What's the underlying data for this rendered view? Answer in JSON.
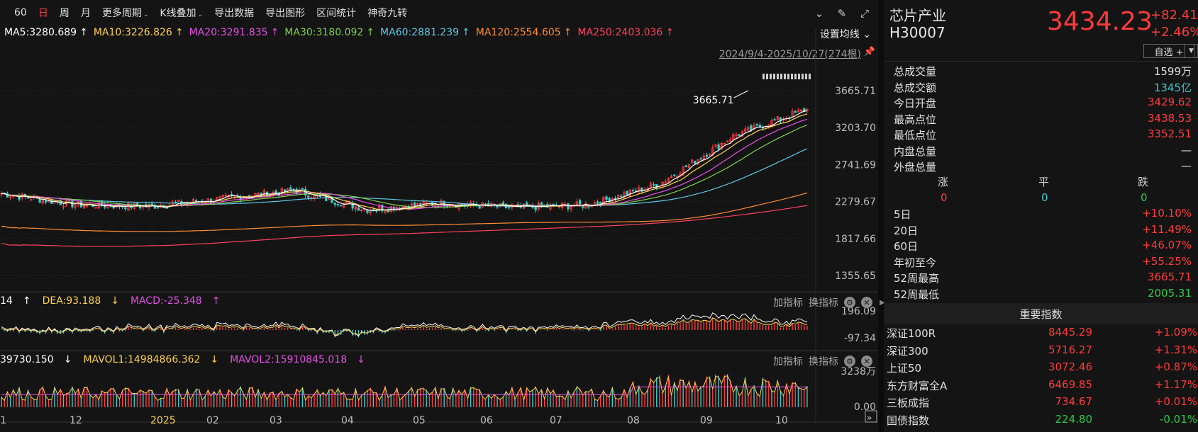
{
  "toolbar": {
    "items": [
      "60",
      "日",
      "周",
      "月",
      "更多周期",
      "K线叠加",
      "导出数据",
      "导出图形",
      "区间统计",
      "神奇九转"
    ],
    "active": "日"
  },
  "ma": {
    "items": [
      {
        "text": "MA5:3280.689",
        "arrow": "↑",
        "color": "#ffffff"
      },
      {
        "text": "MA10:3226.826",
        "arrow": "↑",
        "color": "#ffd24a"
      },
      {
        "text": "MA20:3291.835",
        "arrow": "↑",
        "color": "#e650e6"
      },
      {
        "text": "MA30:3180.092",
        "arrow": "↑",
        "color": "#7fd24a"
      },
      {
        "text": "MA60:2881.239",
        "arrow": "↑",
        "color": "#5ac8e6"
      },
      {
        "text": "MA120:2554.605",
        "arrow": "↑",
        "color": "#ff8c32"
      },
      {
        "text": "MA250:2403.036",
        "arrow": "↑",
        "color": "#ff4060"
      }
    ],
    "settings_label": "设置均线",
    "range_label": "2024/9/4-2025/10/27(274根)"
  },
  "price_axis": [
    "3665.71",
    "3203.70",
    "2741.69",
    "2279.67",
    "1817.66",
    "1355.65"
  ],
  "high_label": "3665.71",
  "macd": {
    "legend": [
      {
        "text": "14",
        "arrow": "↑",
        "color": "#ffffff"
      },
      {
        "text": "DEA:93.188",
        "arrow": "↓",
        "color": "#ffd24a"
      },
      {
        "text": "MACD:-25.348",
        "arrow": "↑",
        "color": "#e650e6"
      }
    ],
    "axis": [
      "196.09",
      "-97.34"
    ]
  },
  "volume": {
    "legend": [
      {
        "text": "39730.150",
        "arrow": "↓",
        "color": "#ffffff"
      },
      {
        "text": "MAVOL1:14984866.362",
        "arrow": "↓",
        "color": "#ffd24a"
      },
      {
        "text": "MAVOL2:15910845.018",
        "arrow": "↓",
        "color": "#e650e6"
      }
    ],
    "axis": [
      "3238万",
      "0.00"
    ]
  },
  "indicator_tools": {
    "add": "加指标",
    "swap": "换指标"
  },
  "x_axis": [
    "1",
    "12",
    "2025",
    "02",
    "03",
    "04",
    "05",
    "06",
    "07",
    "08",
    "09",
    "10"
  ],
  "stock": {
    "name": "芯片产业",
    "code": "H30007",
    "price": "3434.23",
    "change": "+82.41",
    "change_pct": "+2.46%",
    "watch_label": "自选 +"
  },
  "stats": [
    {
      "label": "总成交量",
      "value": "1599万",
      "color": "#e0e0e0"
    },
    {
      "label": "总成交额",
      "value": "1345亿",
      "color": "#3ec9c9"
    },
    {
      "label": "今日开盘",
      "value": "3429.62",
      "color": "#ff3b3b"
    },
    {
      "label": "最高点位",
      "value": "3438.53",
      "color": "#ff3b3b"
    },
    {
      "label": "最低点位",
      "value": "3352.51",
      "color": "#ff3b3b"
    },
    {
      "label": "内盘总量",
      "value": "—",
      "color": "#e0e0e0"
    },
    {
      "label": "外盘总量",
      "value": "—",
      "color": "#e0e0e0"
    }
  ],
  "tri": {
    "up_label": "涨",
    "flat_label": "平",
    "down_label": "跌",
    "up": "0",
    "flat": "0",
    "down": "0"
  },
  "perf": [
    {
      "label": "5日",
      "value": "+10.10%",
      "color": "#ff3b3b"
    },
    {
      "label": "20日",
      "value": "+11.49%",
      "color": "#ff3b3b"
    },
    {
      "label": "60日",
      "value": "+46.07%",
      "color": "#ff3b3b"
    },
    {
      "label": "年初至今",
      "value": "+55.25%",
      "color": "#ff3b3b"
    },
    {
      "label": "52周最高",
      "value": "3665.71",
      "color": "#ff3b3b"
    },
    {
      "label": "52周最低",
      "value": "2005.31",
      "color": "#2ec94a"
    }
  ],
  "indices_title": "重要指数",
  "indices": [
    {
      "name": "深证100R",
      "price": "8445.29",
      "change": "+1.09%",
      "color": "#ff3b3b"
    },
    {
      "name": "深证300",
      "price": "5716.27",
      "change": "+1.31%",
      "color": "#ff3b3b"
    },
    {
      "name": "上证50",
      "price": "3072.46",
      "change": "+0.87%",
      "color": "#ff3b3b"
    },
    {
      "name": "东方财富全A",
      "price": "6469.85",
      "change": "+1.17%",
      "color": "#ff3b3b"
    },
    {
      "name": "三板成指",
      "price": "734.67",
      "change": "+0.01%",
      "color": "#ff3b3b"
    },
    {
      "name": "国债指数",
      "price": "224.80",
      "change": "-0.01%",
      "color": "#2ec94a"
    }
  ],
  "chart_data": {
    "type": "candlestick",
    "x_range": [
      "2024-09-04",
      "2025-10-27"
    ],
    "bar_count": 274,
    "ylim": [
      1355.65,
      3665.71
    ],
    "close_path": [
      {
        "month": "2024-11",
        "value": 2380
      },
      {
        "month": "2024-12",
        "value": 2240
      },
      {
        "month": "2025-01",
        "value": 2220
      },
      {
        "month": "2025-02",
        "value": 2310
      },
      {
        "month": "2025-03",
        "value": 2420
      },
      {
        "month": "2025-04",
        "value": 2180
      },
      {
        "month": "2025-05",
        "value": 2260
      },
      {
        "month": "2025-06",
        "value": 2200
      },
      {
        "month": "2025-07",
        "value": 2240
      },
      {
        "month": "2025-08",
        "value": 2500
      },
      {
        "month": "2025-09",
        "value": 3100
      },
      {
        "month": "2025-10",
        "value": 3434.23
      }
    ]
  }
}
